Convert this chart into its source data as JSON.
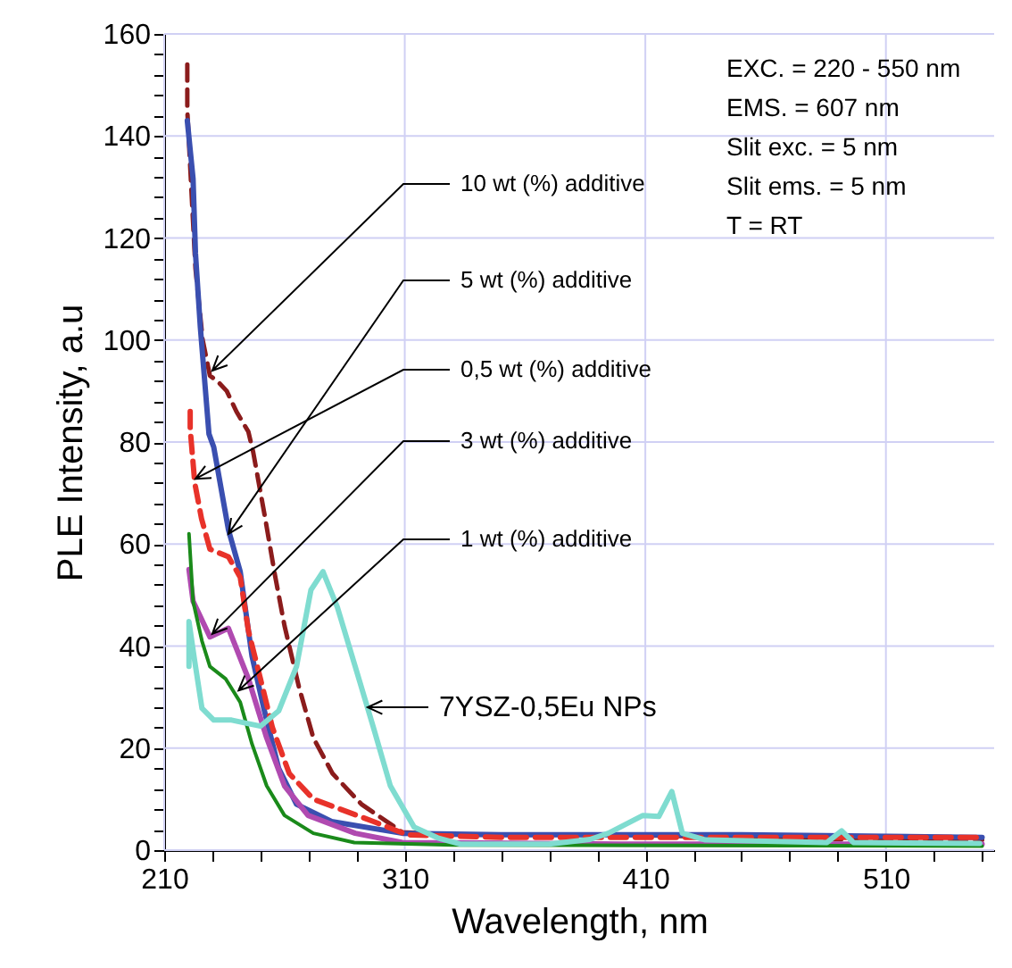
{
  "chart_data": {
    "type": "line",
    "xlabel": "Wavelength, nm",
    "ylabel": "PLE Intensity, a.u",
    "xlim": [
      210,
      555
    ],
    "ylim": [
      0,
      160
    ],
    "xticks": [
      210,
      {
        "value": 230,
        "label": null
      },
      {
        "value": 250,
        "label": null
      },
      {
        "value": 270,
        "label": null
      },
      {
        "value": 290,
        "label": null
      },
      310,
      {
        "value": 330,
        "label": null
      },
      {
        "value": 350,
        "label": null
      },
      {
        "value": 370,
        "label": null
      },
      {
        "value": 390,
        "label": null
      },
      410,
      {
        "value": 430,
        "label": null
      },
      {
        "value": 450,
        "label": null
      },
      {
        "value": 470,
        "label": null
      },
      {
        "value": 490,
        "label": null
      },
      510,
      {
        "value": 530,
        "label": null
      },
      {
        "value": 550,
        "label": null
      }
    ],
    "yticks": [
      0,
      {
        "value": 4,
        "label": null
      },
      {
        "value": 8,
        "label": null
      },
      {
        "value": 12,
        "label": null
      },
      {
        "value": 16,
        "label": null
      },
      20,
      {
        "value": 24,
        "label": null
      },
      {
        "value": 28,
        "label": null
      },
      {
        "value": 32,
        "label": null
      },
      {
        "value": 36,
        "label": null
      },
      40,
      {
        "value": 44,
        "label": null
      },
      {
        "value": 48,
        "label": null
      },
      {
        "value": 52,
        "label": null
      },
      {
        "value": 56,
        "label": null
      },
      60,
      {
        "value": 64,
        "label": null
      },
      {
        "value": 68,
        "label": null
      },
      {
        "value": 72,
        "label": null
      },
      {
        "value": 76,
        "label": null
      },
      80,
      {
        "value": 84,
        "label": null
      },
      {
        "value": 88,
        "label": null
      },
      {
        "value": 92,
        "label": null
      },
      {
        "value": 96,
        "label": null
      },
      100,
      {
        "value": 104,
        "label": null
      },
      {
        "value": 108,
        "label": null
      },
      {
        "value": 112,
        "label": null
      },
      {
        "value": 116,
        "label": null
      },
      120,
      {
        "value": 124,
        "label": null
      },
      {
        "value": 128,
        "label": null
      },
      {
        "value": 132,
        "label": null
      },
      {
        "value": 136,
        "label": null
      },
      140,
      {
        "value": 144,
        "label": null
      },
      {
        "value": 148,
        "label": null
      },
      {
        "value": 152,
        "label": null
      },
      {
        "value": 156,
        "label": null
      },
      160
    ],
    "grid": true,
    "series": [
      {
        "color": "#8b1c1c",
        "line_style": "dashed",
        "x": [
          219.6,
          219.6,
          223,
          226,
          229,
          232,
          236,
          240,
          245,
          247,
          252,
          256,
          260,
          266,
          272,
          280,
          292,
          309,
          330,
          400,
          450,
          500,
          550
        ],
        "values": [
          154,
          145,
          114,
          100,
          93,
          92,
          90,
          86,
          82,
          78,
          65,
          54,
          44,
          32,
          22,
          15,
          9,
          3.5,
          3,
          3,
          2.5,
          2,
          2
        ]
      },
      {
        "color": "#3a4fb0",
        "line_style": "solid",
        "x": [
          219.6,
          222,
          223,
          225,
          227,
          228.6,
          230.6,
          236.7,
          241.6,
          246.5,
          251.4,
          257.6,
          265,
          279.6,
          309,
          350,
          450,
          550
        ],
        "values": [
          143,
          131.6,
          117,
          102.6,
          91,
          81.6,
          79,
          62.8,
          54.6,
          38,
          27.8,
          16,
          9,
          5.6,
          3.3,
          3,
          3,
          2.5
        ]
      },
      {
        "color": "#e8322a",
        "line_style": "dashed",
        "x": [
          220.8,
          220.8,
          222.7,
          225.5,
          229,
          236.7,
          241.6,
          245,
          250,
          255,
          262,
          272,
          297,
          311,
          350,
          450,
          550
        ],
        "values": [
          86,
          82.6,
          72,
          65,
          59,
          57.5,
          53.5,
          43,
          33.6,
          24,
          15,
          10,
          5.6,
          3,
          2.5,
          2.5,
          2.5
        ]
      },
      {
        "color": "#b04ab0",
        "line_style": "solid",
        "x": [
          220.3,
          222,
          229,
          236.7,
          245,
          252.6,
          260,
          269.8,
          289.4,
          309,
          400,
          550
        ],
        "values": [
          55,
          48.8,
          41.8,
          43.5,
          33.6,
          22,
          12.6,
          6.8,
          3.3,
          1.5,
          1.2,
          1.2
        ]
      },
      {
        "color": "#1a8a1a",
        "line_style": "solid",
        "x": [
          220.3,
          222,
          225.7,
          229,
          235.5,
          241.6,
          246.5,
          252.6,
          260,
          272,
          289,
          330,
          550
        ],
        "values": [
          62,
          48.8,
          41,
          36,
          33.6,
          29,
          20.8,
          12.6,
          6.8,
          3.3,
          1.5,
          1,
          0.8
        ]
      },
      {
        "color": "#7fdcd0",
        "line_style": "solid",
        "x": [
          220.3,
          220.3,
          222.7,
          225.7,
          230.6,
          238,
          245,
          250,
          257.6,
          265,
          271,
          276,
          282,
          289.4,
          296.8,
          304,
          313.9,
          323.7,
          333,
          370,
          387,
          394.6,
          409,
          415.6,
          421,
          425.4,
          435,
          485.5,
          491.6,
          496.5,
          549
        ],
        "values": [
          36,
          44.8,
          37,
          27.8,
          25.5,
          25.5,
          24.8,
          24.3,
          27.3,
          36,
          51,
          54.6,
          47.6,
          36,
          24.3,
          12.6,
          4.5,
          2.4,
          1.2,
          1.2,
          2.1,
          3.3,
          6.8,
          6.6,
          11.5,
          3.3,
          2,
          1.5,
          3.8,
          1.5,
          1.3
        ]
      }
    ],
    "annotations": [
      "EXC. = 220 - 550 nm",
      "EMS. = 607 nm",
      "Slit exc. = 5 nm",
      "Slit ems. = 5 nm",
      "T = RT",
      {
        "text": "10 wt (%) additive",
        "x": 230,
        "y": 94
      },
      {
        "text": "5 wt (%) additive",
        "x": 236.7,
        "y": 62
      },
      {
        "text": "0,5 wt (%) additive",
        "x": 223,
        "y": 72.8
      },
      {
        "text": "3 wt (%) additive",
        "x": 230,
        "y": 42.4
      },
      {
        "text": "1 wt (%) additive",
        "x": 240.9,
        "y": 31.3
      },
      {
        "text": "7YSZ-0,5Eu NPs",
        "x": 294.6,
        "y": 28
      }
    ]
  }
}
